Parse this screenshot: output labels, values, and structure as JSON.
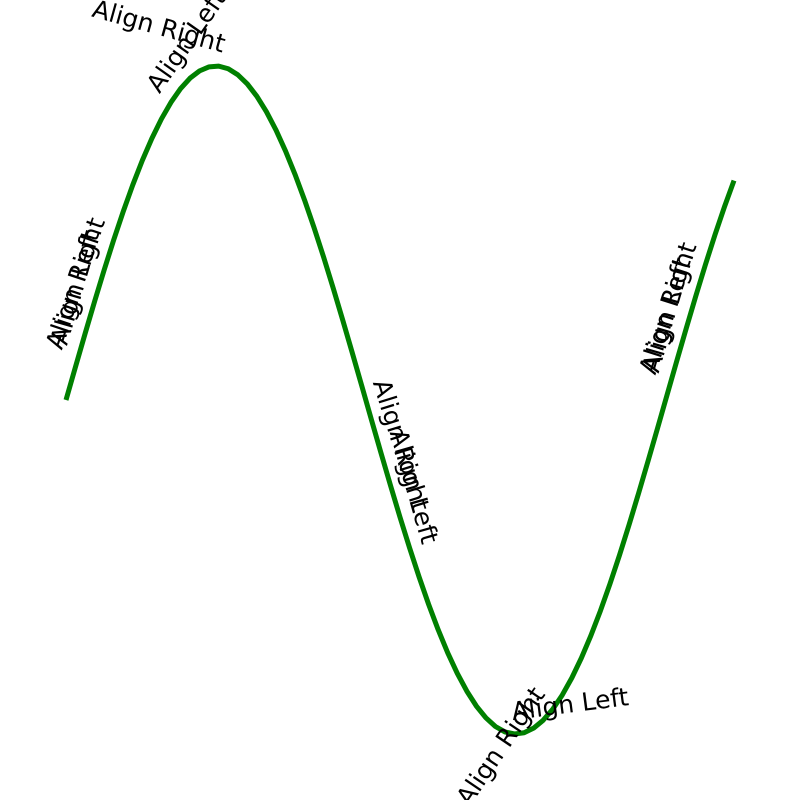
{
  "chart_data": {
    "type": "line",
    "title": "",
    "xlabel": "",
    "ylabel": "",
    "axes_visible": false,
    "grid": false,
    "series": [
      {
        "color": "#008000",
        "x": [
          0.0,
          0.1,
          0.2,
          0.3,
          0.4,
          0.5,
          0.6,
          0.7,
          0.8,
          0.9,
          1.0,
          1.1,
          1.2,
          1.3,
          1.4,
          1.5,
          1.6,
          1.7,
          1.8,
          1.9,
          2.0,
          2.1,
          2.2,
          2.3,
          2.4,
          2.5,
          2.6,
          2.7,
          2.8,
          2.9,
          3.0,
          3.1,
          3.2,
          3.3,
          3.4,
          3.5,
          3.6,
          3.7,
          3.8,
          3.9,
          4.0,
          4.1,
          4.2,
          4.3,
          4.4,
          4.5,
          4.6,
          4.7,
          4.8,
          4.9,
          5.0,
          5.1,
          5.2,
          5.3,
          5.4,
          5.5,
          5.6,
          5.7,
          5.8,
          5.9,
          6.0,
          6.1,
          6.2,
          6.3,
          6.4,
          6.5,
          6.6,
          6.7,
          6.8,
          6.9,
          7.0
        ],
        "y": [
          0.0,
          0.0998,
          0.1987,
          0.2955,
          0.3894,
          0.4794,
          0.5646,
          0.6442,
          0.7174,
          0.7833,
          0.8415,
          0.8912,
          0.932,
          0.9636,
          0.9854,
          0.9975,
          0.9996,
          0.9917,
          0.9738,
          0.9463,
          0.9093,
          0.8632,
          0.8085,
          0.7457,
          0.6755,
          0.5985,
          0.5155,
          0.4274,
          0.335,
          0.2392,
          0.1411,
          0.0416,
          -0.0584,
          -0.1577,
          -0.2555,
          -0.3508,
          -0.4425,
          -0.5298,
          -0.6119,
          -0.6878,
          -0.7568,
          -0.8183,
          -0.8716,
          -0.9162,
          -0.9516,
          -0.9775,
          -0.9937,
          -0.9999,
          -0.9962,
          -0.9825,
          -0.9589,
          -0.9258,
          -0.8835,
          -0.8323,
          -0.7728,
          -0.7055,
          -0.6313,
          -0.5507,
          -0.4646,
          -0.3739,
          -0.2794,
          -0.1822,
          -0.0831,
          0.0168,
          0.1165,
          0.2151,
          0.3115,
          0.4048,
          0.4941,
          0.5784,
          0.657
        ]
      }
    ],
    "xlim": [
      0.0,
      7.0
    ],
    "ylim": [
      -1.0,
      1.0
    ],
    "labels": [
      {
        "text": "Align Left",
        "x": 0.15,
        "align": "left"
      },
      {
        "text": "Align Right",
        "x": 0.55,
        "align": "right"
      },
      {
        "text": "Align Left",
        "x": 1.1,
        "align": "left"
      },
      {
        "text": "Align Right",
        "x": 1.6,
        "align": "right"
      },
      {
        "text": "Align Left",
        "x": 3.25,
        "align": "left"
      },
      {
        "text": "Align Right",
        "x": 3.5,
        "align": "right"
      },
      {
        "text": "Align Left",
        "x": 4.7,
        "align": "left"
      },
      {
        "text": "Align Right",
        "x": 5.15,
        "align": "right"
      },
      {
        "text": "Align Left",
        "x": 6.35,
        "align": "left"
      },
      {
        "text": "Align Right",
        "x": 6.75,
        "align": "right"
      }
    ]
  }
}
